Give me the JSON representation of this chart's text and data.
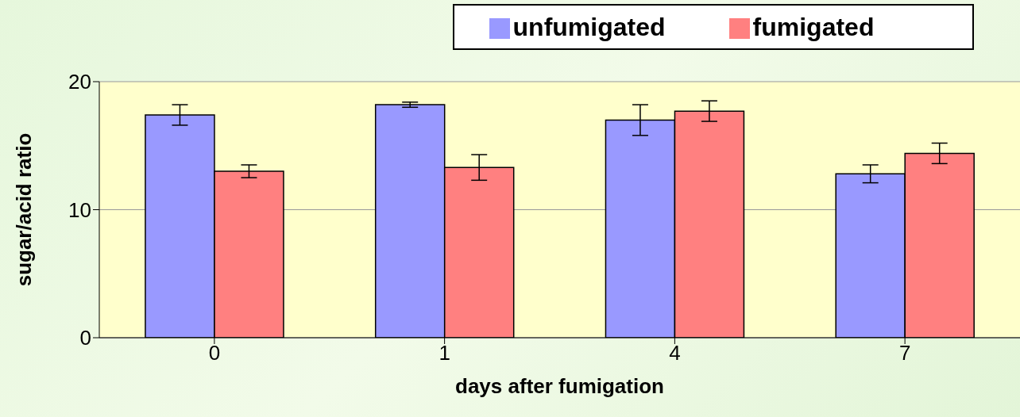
{
  "chart_data": {
    "type": "bar",
    "xlabel": "days after fumigation",
    "ylabel": "sugar/acid ratio",
    "categories": [
      "0",
      "1",
      "4",
      "7"
    ],
    "series": [
      {
        "name": "unfumigated",
        "color": "#9999ff",
        "values": [
          17.4,
          18.2,
          17.0,
          12.8
        ],
        "errors": [
          0.8,
          0.2,
          1.2,
          0.7
        ]
      },
      {
        "name": "fumigated",
        "color": "#ff8080",
        "values": [
          13.0,
          13.3,
          17.7,
          14.4
        ],
        "errors": [
          0.5,
          1.0,
          0.8,
          0.8
        ]
      }
    ],
    "ylim": [
      0,
      20
    ],
    "yticks": [
      0,
      10,
      20
    ],
    "grid": "y",
    "legend": "top right"
  }
}
